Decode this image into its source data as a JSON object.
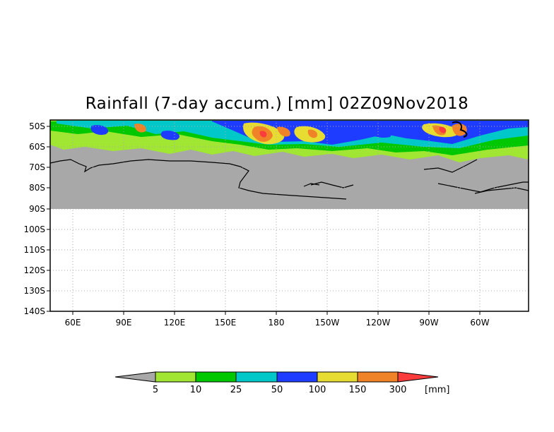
{
  "title": "Rainfall (7-day accum.) [mm] 02Z09Nov2018",
  "map": {
    "lat_ticks": [
      "50S",
      "60S",
      "70S",
      "80S",
      "90S",
      "100S",
      "110S",
      "120S",
      "130S",
      "140S"
    ],
    "lon_ticks": [
      "60E",
      "90E",
      "120E",
      "150E",
      "180",
      "150W",
      "120W",
      "90W",
      "60W"
    ],
    "lat_range": [
      "47S",
      "140S"
    ],
    "lon_range": [
      "40E",
      "20W"
    ],
    "land_color": "#a8a8a8",
    "grid": "dotted"
  },
  "colorbar": {
    "labels": [
      "5",
      "10",
      "25",
      "50",
      "100",
      "150",
      "300"
    ],
    "unit": "[mm]",
    "colors": {
      "below": "#a8a8a8",
      "bins": [
        "#a0e632",
        "#00c800",
        "#00c8c8",
        "#1e3cff",
        "#e6dc32",
        "#f08228"
      ],
      "above": "#fa3c3c"
    }
  }
}
